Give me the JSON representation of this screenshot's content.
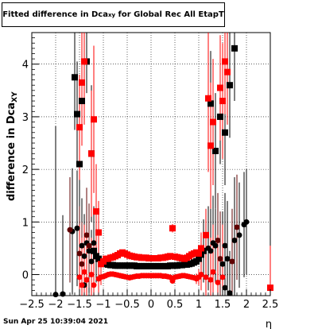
{
  "chart_data": {
    "type": "scatter",
    "title": {
      "main": "Fitted difference in Dca",
      "subscript": "xy",
      "suffix": " for Global Rec All EtapT"
    },
    "xlabel": "η",
    "ylabel": {
      "main": "difference in Dca",
      "subscript": "XY"
    },
    "xlim": [
      -2.5,
      2.5
    ],
    "ylim": [
      -0.4,
      4.6
    ],
    "xticks": [
      "−2.5",
      "−2",
      "−1.5",
      "−1",
      "−0.5",
      "0",
      "0.5",
      "1",
      "1.5",
      "2",
      "2.5"
    ],
    "xtick_values": [
      -2.5,
      -2,
      -1.5,
      -1,
      -0.5,
      0,
      0.5,
      1,
      1.5,
      2,
      2.5
    ],
    "yticks": [
      "0",
      "1",
      "2",
      "3",
      "4"
    ],
    "ytick_values": [
      0,
      1,
      2,
      3,
      4
    ],
    "grid": "dotted",
    "colors": {
      "black": "#000000",
      "red": "#ff0000",
      "dark_red": "#600000"
    },
    "series": [
      {
        "color": "#000000",
        "marker": "square",
        "points": [
          [
            -1.6,
            3.75,
            1.0
          ],
          [
            -1.55,
            3.05,
            1.0
          ],
          [
            -1.5,
            2.1,
            1.0
          ],
          [
            -1.45,
            3.3,
            0.8
          ],
          [
            -1.35,
            4.05,
            0.6
          ],
          [
            -1.25,
            2.3,
            1.3
          ],
          [
            1.25,
            3.25,
            1.0
          ],
          [
            1.35,
            2.35,
            1.1
          ],
          [
            1.45,
            3.0,
            0.9
          ],
          [
            1.55,
            2.7,
            1.0
          ],
          [
            1.65,
            3.6,
            1.0
          ],
          [
            1.75,
            4.3,
            1.0
          ],
          [
            -1.2,
            0.45,
            0.8
          ],
          [
            -1.15,
            0.35,
            0.5
          ],
          [
            -1.1,
            0.3,
            0.3
          ],
          [
            -1.0,
            0.22,
            0.05
          ],
          [
            -0.95,
            0.2,
            0.05
          ],
          [
            -0.9,
            0.19,
            0.05
          ],
          [
            -0.85,
            0.18,
            0.05
          ],
          [
            -0.8,
            0.18,
            0.05
          ],
          [
            -0.75,
            0.17,
            0.05
          ],
          [
            -0.7,
            0.17,
            0.05
          ],
          [
            -0.65,
            0.17,
            0.05
          ],
          [
            -0.6,
            0.17,
            0.05
          ],
          [
            -0.55,
            0.17,
            0.05
          ],
          [
            -0.5,
            0.17,
            0.05
          ],
          [
            -0.45,
            0.17,
            0.05
          ],
          [
            -0.4,
            0.17,
            0.05
          ],
          [
            -0.35,
            0.17,
            0.05
          ],
          [
            -0.3,
            0.16,
            0.05
          ],
          [
            -0.25,
            0.16,
            0.05
          ],
          [
            -0.2,
            0.16,
            0.05
          ],
          [
            -0.15,
            0.16,
            0.05
          ],
          [
            -0.1,
            0.16,
            0.05
          ],
          [
            -0.05,
            0.16,
            0.05
          ],
          [
            0.0,
            0.16,
            0.05
          ],
          [
            0.05,
            0.16,
            0.05
          ],
          [
            0.1,
            0.16,
            0.05
          ],
          [
            0.15,
            0.16,
            0.05
          ],
          [
            0.2,
            0.16,
            0.05
          ],
          [
            0.25,
            0.16,
            0.05
          ],
          [
            0.3,
            0.16,
            0.05
          ],
          [
            0.35,
            0.16,
            0.05
          ],
          [
            0.4,
            0.17,
            0.05
          ],
          [
            0.45,
            0.17,
            0.05
          ],
          [
            0.5,
            0.17,
            0.05
          ],
          [
            0.55,
            0.17,
            0.05
          ],
          [
            0.6,
            0.18,
            0.05
          ],
          [
            0.65,
            0.18,
            0.05
          ],
          [
            0.7,
            0.19,
            0.05
          ],
          [
            0.75,
            0.19,
            0.05
          ],
          [
            0.8,
            0.2,
            0.05
          ],
          [
            0.85,
            0.21,
            0.05
          ],
          [
            0.9,
            0.23,
            0.05
          ],
          [
            0.95,
            0.25,
            0.06
          ],
          [
            1.0,
            0.3,
            0.1
          ],
          [
            1.05,
            0.38,
            0.3
          ],
          [
            1.1,
            0.45,
            0.6
          ]
        ]
      },
      {
        "color": "#ff0000",
        "marker": "square",
        "points": [
          [
            -1.4,
            4.05,
            1.2
          ],
          [
            -1.45,
            3.65,
            1.2
          ],
          [
            -1.5,
            2.8,
            1.0
          ],
          [
            -1.2,
            2.95,
            1.4
          ],
          [
            -1.25,
            2.3,
            1.2
          ],
          [
            -1.15,
            1.2,
            0.9
          ],
          [
            -1.1,
            0.8,
            0.6
          ],
          [
            1.15,
            0.75,
            0.5
          ],
          [
            1.2,
            3.35,
            1.4
          ],
          [
            1.25,
            2.45,
            1.2
          ],
          [
            1.3,
            2.9,
            1.2
          ],
          [
            1.45,
            3.55,
            1.0
          ],
          [
            1.5,
            3.3,
            1.1
          ],
          [
            1.55,
            4.05,
            1.0
          ],
          [
            1.6,
            3.85,
            1.0
          ],
          [
            0.45,
            0.88,
            0.08
          ],
          [
            2.5,
            -0.25,
            0.8
          ],
          [
            -1.05,
            0.2,
            0.1
          ],
          [
            -1.0,
            0.25,
            0.05
          ],
          [
            -0.95,
            0.3,
            0.05
          ],
          [
            -0.9,
            0.3,
            0.05
          ],
          [
            -0.85,
            0.32,
            0.05
          ],
          [
            -0.8,
            0.33,
            0.05
          ],
          [
            -0.75,
            0.35,
            0.05
          ],
          [
            -0.7,
            0.37,
            0.05
          ],
          [
            -0.65,
            0.4,
            0.05
          ],
          [
            -0.6,
            0.42,
            0.05
          ],
          [
            -0.55,
            0.4,
            0.05
          ],
          [
            -0.5,
            0.38,
            0.05
          ],
          [
            -0.45,
            0.36,
            0.05
          ],
          [
            -0.4,
            0.35,
            0.05
          ],
          [
            -0.35,
            0.34,
            0.05
          ],
          [
            -0.3,
            0.33,
            0.05
          ],
          [
            -0.25,
            0.33,
            0.05
          ],
          [
            -0.2,
            0.32,
            0.05
          ],
          [
            -0.15,
            0.32,
            0.05
          ],
          [
            -0.1,
            0.32,
            0.05
          ],
          [
            -0.05,
            0.31,
            0.05
          ],
          [
            0.0,
            0.31,
            0.05
          ],
          [
            0.05,
            0.31,
            0.05
          ],
          [
            0.1,
            0.31,
            0.05
          ],
          [
            0.15,
            0.31,
            0.05
          ],
          [
            0.2,
            0.32,
            0.05
          ],
          [
            0.25,
            0.32,
            0.05
          ],
          [
            0.3,
            0.33,
            0.05
          ],
          [
            0.35,
            0.34,
            0.05
          ],
          [
            0.4,
            0.35,
            0.05
          ],
          [
            0.5,
            0.34,
            0.05
          ],
          [
            0.55,
            0.33,
            0.05
          ],
          [
            0.6,
            0.32,
            0.05
          ],
          [
            0.65,
            0.31,
            0.05
          ],
          [
            0.7,
            0.3,
            0.05
          ],
          [
            0.75,
            0.32,
            0.05
          ],
          [
            0.8,
            0.35,
            0.05
          ],
          [
            0.85,
            0.38,
            0.05
          ],
          [
            0.9,
            0.4,
            0.05
          ],
          [
            0.95,
            0.42,
            0.05
          ],
          [
            1.0,
            0.4,
            0.1
          ],
          [
            1.05,
            0.5,
            0.3
          ]
        ]
      },
      {
        "color": "#000000",
        "marker": "circle",
        "points": [
          [
            -2.0,
            -0.38,
            3.2
          ],
          [
            -1.85,
            -0.37,
            1.5
          ],
          [
            -1.65,
            0.82,
            1.2
          ],
          [
            -1.55,
            0.88,
            1.1
          ],
          [
            -1.45,
            0.55,
            0.9
          ],
          [
            -1.4,
            0.35,
            0.8
          ],
          [
            -1.35,
            0.6,
            0.9
          ],
          [
            -1.3,
            0.45,
            0.8
          ],
          [
            -1.25,
            0.25,
            0.6
          ],
          [
            -1.2,
            0.6,
            0.7
          ],
          [
            1.2,
            0.5,
            0.8
          ],
          [
            1.25,
            0.45,
            0.8
          ],
          [
            1.3,
            0.6,
            0.9
          ],
          [
            1.35,
            0.55,
            0.7
          ],
          [
            1.5,
            0.2,
            1.0
          ],
          [
            1.55,
            0.55,
            1.0
          ],
          [
            1.6,
            0.3,
            1.1
          ],
          [
            1.75,
            0.65,
            1.2
          ],
          [
            1.85,
            0.75,
            1.0
          ],
          [
            1.95,
            0.95,
            1.0
          ],
          [
            2.0,
            1.0,
            1.0
          ],
          [
            -1.4,
            -0.2,
            0.8
          ],
          [
            1.55,
            -0.25,
            0.8
          ],
          [
            1.65,
            -0.35,
            0.8
          ]
        ]
      },
      {
        "color": "#600000",
        "marker": "circle",
        "points": [
          [
            -1.7,
            0.85,
            1.0
          ],
          [
            -1.5,
            0.4,
            0.9
          ],
          [
            -1.45,
            0.2,
            0.8
          ],
          [
            -1.35,
            0.75,
            0.9
          ],
          [
            -1.3,
            0.55,
            0.8
          ],
          [
            1.4,
            0.65,
            0.9
          ],
          [
            1.45,
            0.3,
            0.9
          ],
          [
            1.7,
            0.25,
            1.0
          ],
          [
            1.8,
            0.9,
            1.0
          ]
        ]
      },
      {
        "color": "#ff0000",
        "marker": "circle",
        "points": [
          [
            -1.5,
            -0.05,
            1.0
          ],
          [
            -1.45,
            -0.2,
            0.9
          ],
          [
            -1.4,
            0.05,
            0.9
          ],
          [
            -1.35,
            -0.1,
            0.8
          ],
          [
            -1.25,
            0.0,
            0.7
          ],
          [
            -1.2,
            -0.2,
            0.8
          ],
          [
            -1.1,
            -0.08,
            0.3
          ],
          [
            -1.05,
            -0.05,
            0.15
          ],
          [
            -1.0,
            -0.04,
            0.05
          ],
          [
            -0.95,
            -0.02,
            0.05
          ],
          [
            -0.9,
            0.0,
            0.05
          ],
          [
            -0.85,
            0.01,
            0.05
          ],
          [
            -0.8,
            0.01,
            0.05
          ],
          [
            -0.75,
            0.0,
            0.05
          ],
          [
            -0.7,
            -0.01,
            0.05
          ],
          [
            -0.65,
            -0.02,
            0.05
          ],
          [
            -0.6,
            -0.03,
            0.05
          ],
          [
            -0.55,
            -0.04,
            0.05
          ],
          [
            -0.5,
            -0.05,
            0.05
          ],
          [
            -0.45,
            -0.06,
            0.05
          ],
          [
            -0.4,
            -0.05,
            0.05
          ],
          [
            -0.35,
            -0.04,
            0.05
          ],
          [
            -0.3,
            -0.03,
            0.05
          ],
          [
            -0.25,
            -0.03,
            0.05
          ],
          [
            -0.2,
            -0.02,
            0.05
          ],
          [
            -0.15,
            -0.02,
            0.05
          ],
          [
            -0.1,
            -0.02,
            0.05
          ],
          [
            -0.05,
            -0.02,
            0.05
          ],
          [
            0.0,
            -0.02,
            0.05
          ],
          [
            0.05,
            -0.02,
            0.05
          ],
          [
            0.1,
            -0.02,
            0.05
          ],
          [
            0.15,
            -0.02,
            0.05
          ],
          [
            0.2,
            -0.02,
            0.05
          ],
          [
            0.25,
            -0.03,
            0.05
          ],
          [
            0.3,
            -0.03,
            0.05
          ],
          [
            0.35,
            -0.04,
            0.05
          ],
          [
            0.4,
            -0.05,
            0.05
          ],
          [
            0.45,
            -0.12,
            0.05
          ],
          [
            0.5,
            -0.05,
            0.05
          ],
          [
            0.55,
            -0.04,
            0.05
          ],
          [
            0.6,
            -0.03,
            0.05
          ],
          [
            0.65,
            -0.02,
            0.05
          ],
          [
            0.7,
            -0.02,
            0.05
          ],
          [
            0.75,
            -0.03,
            0.05
          ],
          [
            0.8,
            -0.04,
            0.05
          ],
          [
            0.85,
            -0.05,
            0.05
          ],
          [
            0.9,
            -0.06,
            0.05
          ],
          [
            0.95,
            -0.08,
            0.1
          ],
          [
            1.0,
            -0.05,
            0.15
          ],
          [
            1.05,
            0.0,
            0.3
          ],
          [
            1.15,
            -0.05,
            0.6
          ],
          [
            1.25,
            -0.1,
            0.8
          ],
          [
            1.3,
            0.05,
            0.9
          ],
          [
            1.4,
            -0.15,
            0.9
          ],
          [
            1.5,
            -0.05,
            1.0
          ]
        ]
      }
    ]
  },
  "timestamp": "Sun Apr 25 10:39:04 2021"
}
